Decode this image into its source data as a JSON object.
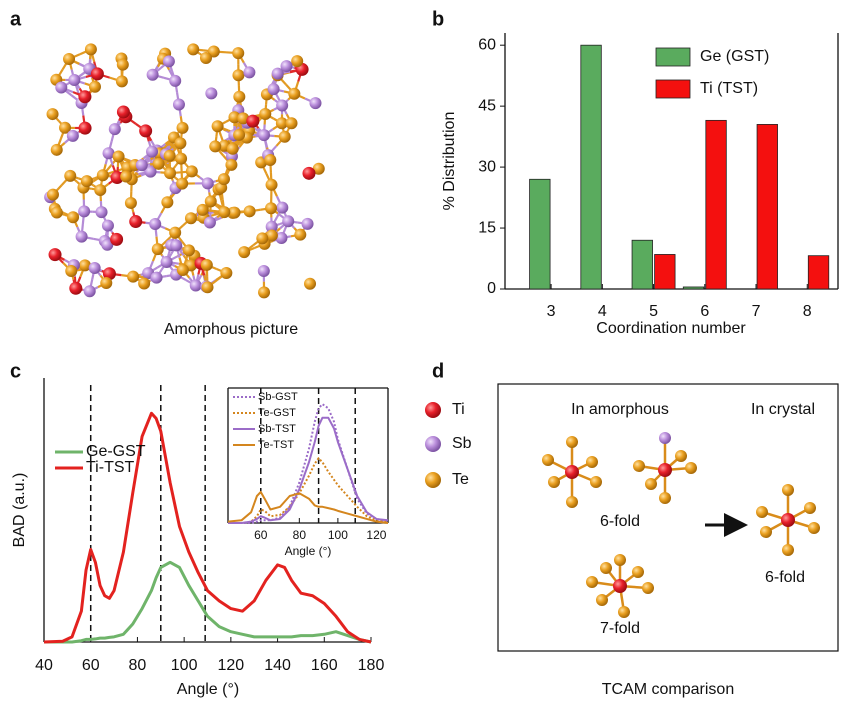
{
  "panel_labels": [
    "a",
    "b",
    "c",
    "d"
  ],
  "panel_a": {
    "caption": "Amorphous picture"
  },
  "panel_d": {
    "legend": [
      "Ti",
      "Sb",
      "Te"
    ],
    "headers": [
      "In amorphous",
      "In crystal"
    ],
    "labels": [
      "6-fold",
      "7-fold",
      "6-fold"
    ],
    "caption": "TCAM comparison"
  },
  "chart_data": [
    {
      "type": "bar",
      "xlabel": "Coordination number",
      "ylabel": "% Distribution",
      "x": [
        3,
        4,
        5,
        6,
        7,
        8
      ],
      "series": [
        {
          "name": "Ge (GST)",
          "color": "#5aab5e",
          "values": [
            27,
            60,
            12,
            0.5,
            0,
            0
          ]
        },
        {
          "name": "Ti (TST)",
          "color": "#f4100f",
          "values": [
            0,
            0,
            8.5,
            41.5,
            40.5,
            8.2
          ]
        }
      ],
      "xlim": [
        2.1,
        8.6
      ],
      "xticks": [
        3,
        4,
        5,
        6,
        7,
        8
      ],
      "ylim": [
        0,
        63
      ],
      "yticks": [
        0,
        15,
        30,
        45,
        60
      ],
      "legend": "upper right"
    },
    {
      "type": "line",
      "xlabel": "Angle (°)",
      "ylabel": "BAD (a.u.)",
      "x": [
        40,
        48,
        52,
        56,
        58,
        60,
        62,
        64,
        66,
        68,
        70,
        74,
        78,
        82,
        86,
        88,
        90,
        94,
        98,
        102,
        106,
        110,
        115,
        120,
        125,
        130,
        135,
        140,
        143,
        146,
        150,
        155,
        160,
        165,
        170,
        175,
        180
      ],
      "series": [
        {
          "name": "Ge-GST",
          "color": "#6fb46a",
          "style": "solid",
          "values": [
            0,
            0,
            0,
            0.005,
            0.01,
            0.01,
            0.012,
            0.015,
            0.015,
            0.018,
            0.02,
            0.03,
            0.07,
            0.13,
            0.2,
            0.25,
            0.29,
            0.31,
            0.29,
            0.22,
            0.16,
            0.1,
            0.06,
            0.04,
            0.03,
            0.02,
            0.02,
            0.02,
            0.02,
            0.02,
            0.025,
            0.025,
            0.03,
            0.04,
            0.025,
            0.01,
            0
          ]
        },
        {
          "name": "Ti-TST",
          "color": "#e3221f",
          "style": "solid",
          "values": [
            0,
            0.003,
            0.02,
            0.12,
            0.28,
            0.36,
            0.31,
            0.22,
            0.18,
            0.17,
            0.2,
            0.35,
            0.58,
            0.8,
            0.89,
            0.87,
            0.82,
            0.62,
            0.45,
            0.35,
            0.27,
            0.2,
            0.16,
            0.13,
            0.12,
            0.16,
            0.24,
            0.3,
            0.29,
            0.24,
            0.19,
            0.18,
            0.15,
            0.1,
            0.04,
            0.01,
            0
          ]
        }
      ],
      "xlim": [
        40,
        180
      ],
      "xticks": [
        40,
        60,
        80,
        100,
        120,
        140,
        160,
        180
      ],
      "ylim": [
        0,
        1
      ],
      "vlines": [
        60,
        90,
        109
      ],
      "legend": "center left"
    },
    {
      "type": "line",
      "xlabel": "Angle (°)",
      "x": [
        43,
        50,
        55,
        58,
        60,
        62,
        65,
        70,
        75,
        80,
        85,
        88,
        90,
        92,
        95,
        98,
        100,
        105,
        110,
        115,
        120,
        126
      ],
      "series": [
        {
          "name": "Sb-GST",
          "color": "#9b6cc8",
          "style": "dotted",
          "values": [
            0,
            0,
            0,
            0.01,
            0.02,
            0.02,
            0.02,
            0.04,
            0.12,
            0.3,
            0.55,
            0.75,
            0.85,
            0.88,
            0.85,
            0.75,
            0.62,
            0.4,
            0.18,
            0.07,
            0.03,
            0.01
          ]
        },
        {
          "name": "Te-GST",
          "color": "#d4861e",
          "style": "dotted",
          "values": [
            0,
            0,
            0.01,
            0.05,
            0.1,
            0.09,
            0.05,
            0.06,
            0.12,
            0.22,
            0.35,
            0.44,
            0.48,
            0.45,
            0.38,
            0.32,
            0.28,
            0.2,
            0.12,
            0.05,
            0.02,
            0.01
          ]
        },
        {
          "name": "Sb-TST",
          "color": "#9b6cc8",
          "style": "solid",
          "values": [
            0,
            0,
            0.01,
            0.03,
            0.05,
            0.04,
            0.02,
            0.03,
            0.1,
            0.25,
            0.45,
            0.6,
            0.72,
            0.78,
            0.78,
            0.7,
            0.6,
            0.4,
            0.2,
            0.08,
            0.03,
            0.02
          ]
        },
        {
          "name": "Te-TST",
          "color": "#d4861e",
          "style": "solid",
          "values": [
            0.01,
            0.02,
            0.08,
            0.2,
            0.23,
            0.18,
            0.1,
            0.12,
            0.2,
            0.22,
            0.18,
            0.13,
            0.12,
            0.12,
            0.11,
            0.1,
            0.09,
            0.07,
            0.05,
            0.03,
            0.01,
            0
          ]
        }
      ],
      "xlim": [
        43,
        126
      ],
      "xticks": [
        60,
        80,
        100,
        120
      ],
      "ylim": [
        0,
        1
      ],
      "vlines": [
        60,
        90,
        109
      ],
      "legend": "upper left"
    }
  ]
}
